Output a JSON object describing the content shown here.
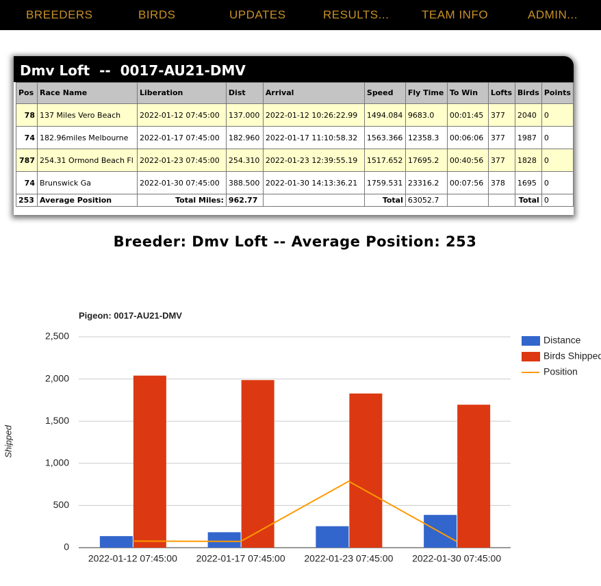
{
  "nav": [
    "BREEDERS",
    "BIRDS",
    "UPDATES",
    "RESULTS...",
    "TEAM INFO",
    "ADMIN..."
  ],
  "panel": {
    "title": "Dmv Loft  --  0017-AU21-DMV"
  },
  "table": {
    "headers": [
      "Pos",
      "Race Name",
      "Liberation",
      "Dist",
      "Arrival",
      "Speed",
      "Fly Time",
      "To Win",
      "Lofts",
      "Birds",
      "Points"
    ],
    "rows": [
      [
        "78",
        "137 Miles Vero Beach",
        "2022-01-12 07:45:00",
        "137.000",
        "2022-01-12 10:26:22.99",
        "1494.084",
        "9683.0",
        "00:01:45",
        "377",
        "2040",
        "0"
      ],
      [
        "74",
        "182.96miles Melbourne",
        "2022-01-17 07:45:00",
        "182.960",
        "2022-01-17 11:10:58.32",
        "1563.366",
        "12358.3",
        "00:06:06",
        "377",
        "1987",
        "0"
      ],
      [
        "787",
        "254.31 Ormond Beach Fl",
        "2022-01-23 07:45:00",
        "254.310",
        "2022-01-23 12:39:55.19",
        "1517.652",
        "17695.2",
        "00:40:56",
        "377",
        "1828",
        "0"
      ],
      [
        "74",
        "Brunswick Ga",
        "2022-01-30 07:45:00",
        "388.500",
        "2022-01-30 14:13:36.21",
        "1759.531",
        "23316.2",
        "00:07:56",
        "378",
        "1695",
        "0"
      ]
    ],
    "footer": {
      "pos": "253",
      "label": "Average Position",
      "miles_label": "Total Miles:",
      "miles": "962.77",
      "fly_label": "Total",
      "fly_total": "63052.7",
      "points_label": "Total",
      "points": "0"
    }
  },
  "heading": "Breeder: Dmv Loft -- Average Position: 253",
  "chart_data": {
    "type": "bar",
    "title": "Pigeon: 0017-AU21-DMV",
    "y_label": "Shipped",
    "categories": [
      "2022-01-12 07:45:00",
      "2022-01-17 07:45:00",
      "2022-01-23 07:45:00",
      "2022-01-30 07:45:00"
    ],
    "series": [
      {
        "name": "Distance",
        "type": "bar",
        "color": "#3366cc",
        "values": [
          137,
          182.96,
          254.31,
          388.5
        ]
      },
      {
        "name": "Birds Shipped",
        "type": "bar",
        "color": "#dc3912",
        "values": [
          2040,
          1987,
          1828,
          1695
        ]
      },
      {
        "name": "Position",
        "type": "line",
        "color": "#ff9900",
        "values": [
          78,
          74,
          787,
          74
        ]
      }
    ],
    "ylim": [
      0,
      2500
    ],
    "yticks": [
      0,
      500,
      {
        "value": 1000,
        "label": "1,000"
      },
      {
        "value": 1500,
        "label": "1,500"
      },
      {
        "value": 2000,
        "label": "2,000"
      },
      {
        "value": 2500,
        "label": "2,500"
      }
    ],
    "grid": true,
    "legend": "right"
  }
}
